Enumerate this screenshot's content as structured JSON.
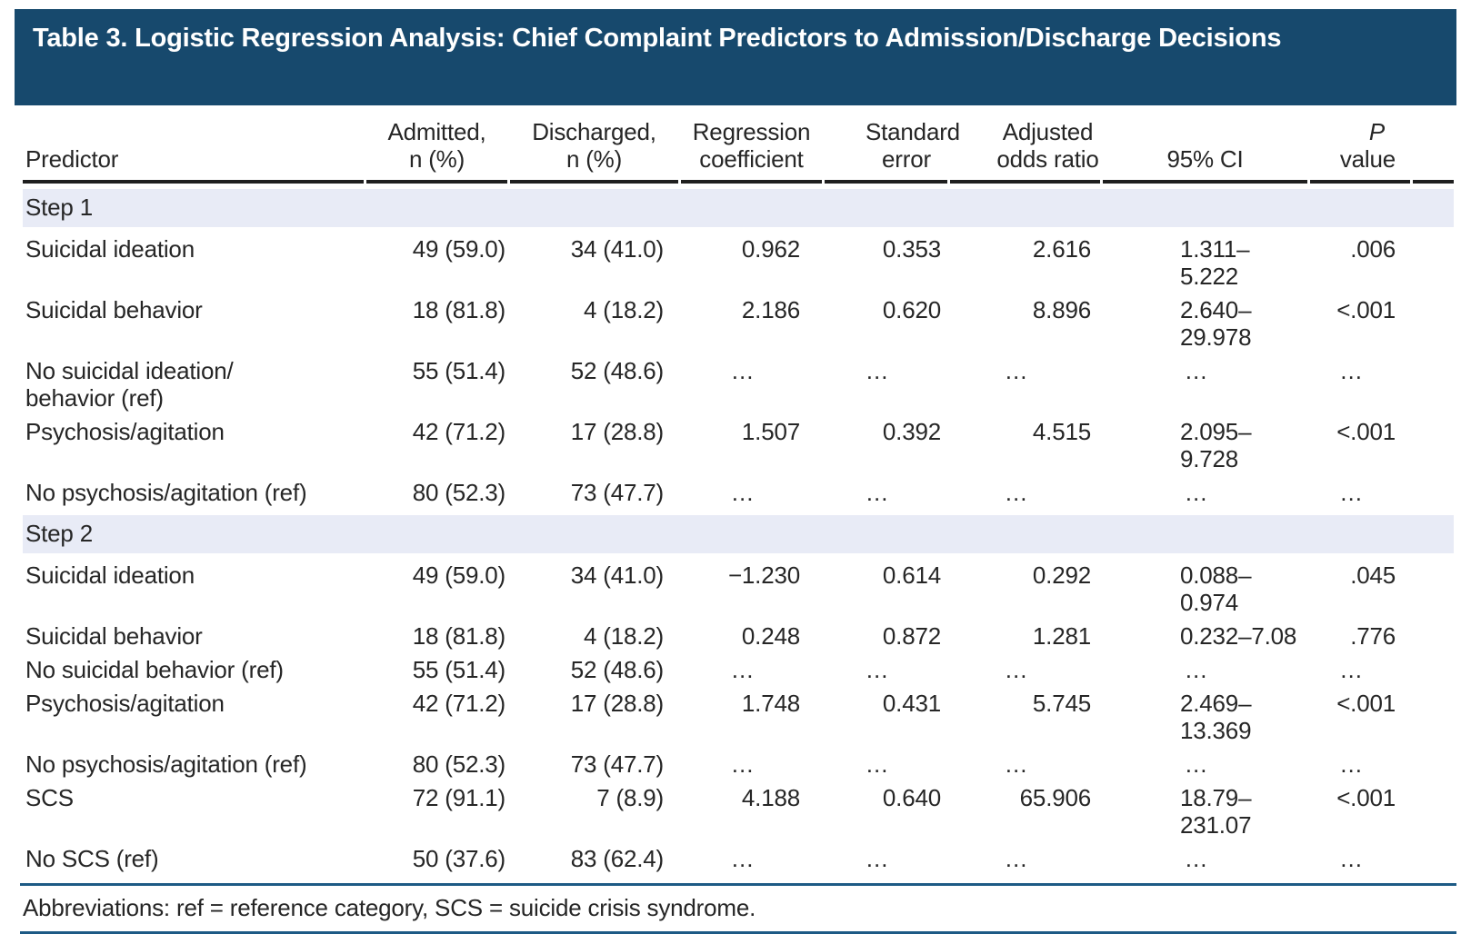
{
  "title": {
    "text": "Table 3. Logistic Regression Analysis: Chief Complaint Predictors to Admission/Discharge Decisions"
  },
  "colors": {
    "banner_blue": "#17496d",
    "section_band": "#e8ebf6",
    "footnote_rule": "#1d5a85"
  },
  "table": {
    "columns": [
      {
        "key": "predictor",
        "line1": "",
        "line2": "Predictor"
      },
      {
        "key": "admitted",
        "line1": "Admitted,",
        "line2": "n (%)"
      },
      {
        "key": "discharged",
        "line1": "Discharged,",
        "line2": "n (%)"
      },
      {
        "key": "coef",
        "line1": "Regression",
        "line2": "coefficient"
      },
      {
        "key": "se",
        "line1": "Standard",
        "line2": "error"
      },
      {
        "key": "aor",
        "line1": "Adjusted",
        "line2": "odds ratio"
      },
      {
        "key": "ci",
        "line1": "",
        "line2": "95% CI"
      },
      {
        "key": "p",
        "line1": "P",
        "line2": "value"
      }
    ],
    "sections": [
      {
        "label": "Step 1",
        "rows": [
          {
            "predictor": "Suicidal ideation",
            "admitted": "49 (59.0)",
            "discharged": "34 (41.0)",
            "coef": "0.962",
            "se": "0.353",
            "aor": "2.616",
            "ci": "1.311–5.222",
            "p": ".006"
          },
          {
            "predictor": "Suicidal behavior",
            "admitted": "18 (81.8)",
            "discharged": "4 (18.2)",
            "coef": "2.186",
            "se": "0.620",
            "aor": "8.896",
            "ci": "2.640–29.978",
            "p": "<.001"
          },
          {
            "predictor": "No suicidal ideation/\nbehavior (ref)",
            "admitted": "55 (51.4)",
            "discharged": "52 (48.6)",
            "coef": "…",
            "se": "…",
            "aor": "…",
            "ci": "…",
            "p": "…"
          },
          {
            "predictor": "Psychosis/agitation",
            "admitted": "42 (71.2)",
            "discharged": "17 (28.8)",
            "coef": "1.507",
            "se": "0.392",
            "aor": "4.515",
            "ci": "2.095–9.728",
            "p": "<.001"
          },
          {
            "predictor": "No psychosis/agitation (ref)",
            "admitted": "80 (52.3)",
            "discharged": "73 (47.7)",
            "coef": "…",
            "se": "…",
            "aor": "…",
            "ci": "…",
            "p": "…"
          }
        ]
      },
      {
        "label": "Step 2",
        "rows": [
          {
            "predictor": "Suicidal ideation",
            "admitted": "49 (59.0)",
            "discharged": "34 (41.0)",
            "coef": "−1.230",
            "se": "0.614",
            "aor": "0.292",
            "ci": "0.088–0.974",
            "p": ".045"
          },
          {
            "predictor": "Suicidal behavior",
            "admitted": "18 (81.8)",
            "discharged": "4 (18.2)",
            "coef": "0.248",
            "se": "0.872",
            "aor": "1.281",
            "ci": "0.232–7.08",
            "p": ".776"
          },
          {
            "predictor": "No suicidal behavior (ref)",
            "admitted": "55 (51.4)",
            "discharged": "52 (48.6)",
            "coef": "…",
            "se": "…",
            "aor": "…",
            "ci": "…",
            "p": "…"
          },
          {
            "predictor": "Psychosis/agitation",
            "admitted": "42 (71.2)",
            "discharged": "17 (28.8)",
            "coef": "1.748",
            "se": "0.431",
            "aor": "5.745",
            "ci": "2.469–13.369",
            "p": "<.001"
          },
          {
            "predictor": "No psychosis/agitation (ref)",
            "admitted": "80 (52.3)",
            "discharged": "73 (47.7)",
            "coef": "…",
            "se": "…",
            "aor": "…",
            "ci": "…",
            "p": "…"
          },
          {
            "predictor": "SCS",
            "admitted": "72 (91.1)",
            "discharged": "7 (8.9)",
            "coef": "4.188",
            "se": "0.640",
            "aor": "65.906",
            "ci": "18.79–231.07",
            "p": "<.001"
          },
          {
            "predictor": "No SCS (ref)",
            "admitted": "50 (37.6)",
            "discharged": "83 (62.4)",
            "coef": "…",
            "se": "…",
            "aor": "…",
            "ci": "…",
            "p": "…"
          }
        ]
      }
    ],
    "footnote": "Abbreviations: ref = reference category, SCS = suicide crisis syndrome."
  }
}
